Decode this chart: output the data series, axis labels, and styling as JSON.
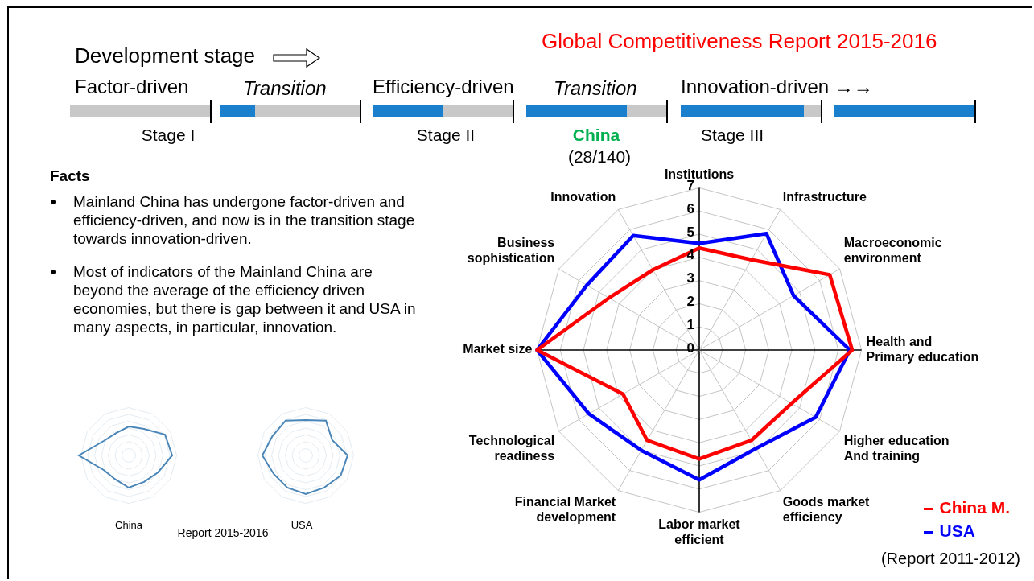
{
  "chart_data": {
    "type": "radar",
    "title": "Global Competitiveness Report 2015-2016",
    "categories": [
      "Institutions",
      "Infrastructure",
      "Macroeconomic\nenvironment",
      "Health and\nPrimary education",
      "Higher education\nAnd training",
      "Goods market\nefficiency",
      "Labor market\nefficient",
      "Financial Market\ndevelopment",
      "Technological\nreadiness",
      "Market size",
      "Business\nsophistication",
      "Innovation"
    ],
    "series": [
      {
        "name": "China M.",
        "color": "#ff0000",
        "values": [
          4.4,
          4.5,
          6.5,
          6.6,
          4.6,
          4.5,
          4.7,
          4.5,
          3.8,
          7.0,
          4.5,
          4.0
        ]
      },
      {
        "name": "USA",
        "color": "#0000ff",
        "values": [
          4.6,
          5.8,
          4.7,
          6.5,
          5.8,
          4.9,
          5.6,
          5.0,
          5.5,
          7.0,
          5.6,
          5.7
        ]
      }
    ],
    "ylim": [
      0,
      7
    ],
    "yticks": [
      0,
      1,
      2,
      3,
      4,
      5,
      6,
      7
    ],
    "grid": true,
    "legend": "bottom right",
    "marker": "none",
    "line_style": "solid",
    "annotations": [
      "Development stage",
      "Factor-driven",
      "Transition",
      "Efficiency-driven",
      "Transition",
      "Innovation-driven →→",
      "Stage I",
      "Stage II",
      "China",
      "(28/140)",
      "Stage III",
      "Facts",
      "Mainland China has undergone factor-driven and efficiency-driven, and now is in the transition stage towards innovation-driven.",
      "Most of indicators of the Mainland China are beyond the average of the efficiency driven economies, but there is gap between it and USA in many aspects, in particular, innovation.",
      "China",
      "Report 2015-2016",
      "USA",
      "(Report 2011-2012)"
    ]
  }
}
